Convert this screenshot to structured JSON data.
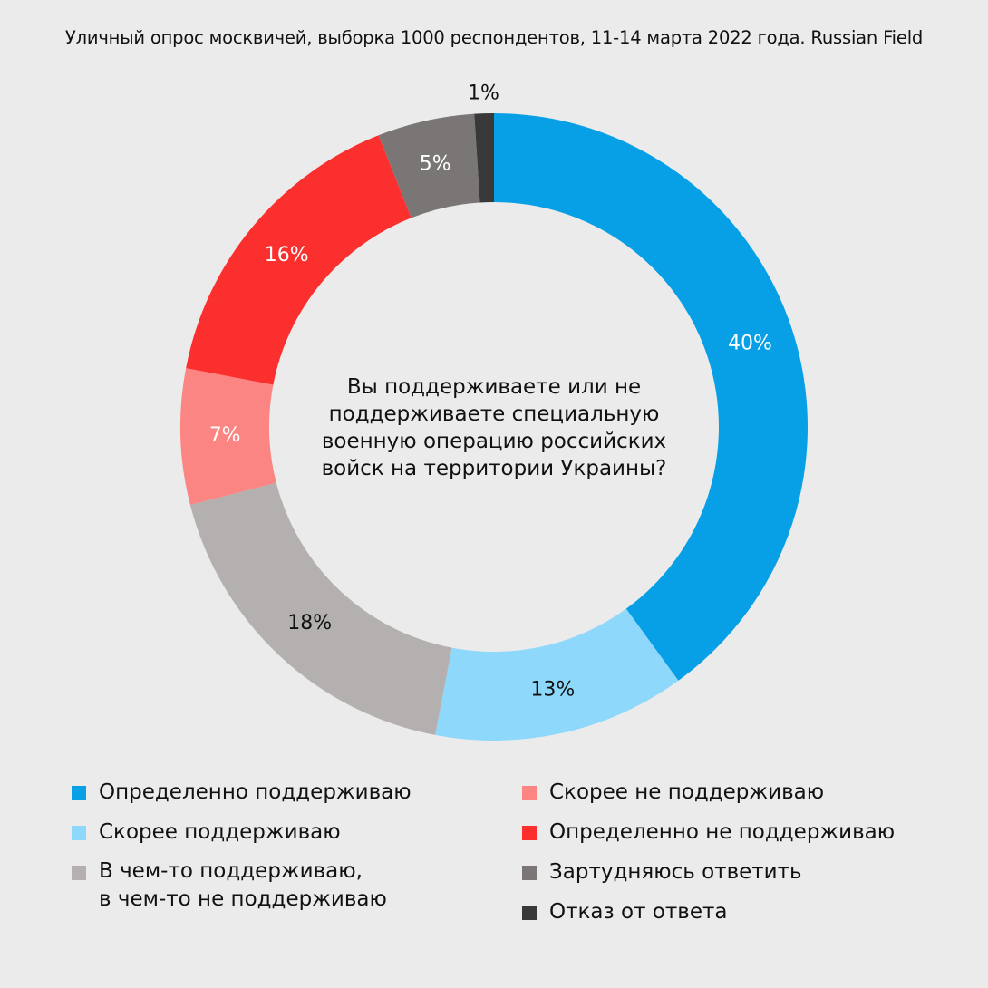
{
  "chart_data": {
    "type": "pie",
    "subtitle": "Уличный опрос москвичей, выборка 1000 респондентов, 11-14 марта 2022 года. Russian Field",
    "center_question": "Вы поддерживаете или не поддерживаете специальную военную операцию российских войск на территории Украины?",
    "slices": [
      {
        "key": "definitely_support",
        "label": "Определенно поддерживаю",
        "value": 40,
        "display": "40%",
        "color": "#079fe6",
        "label_color": "#ffffff"
      },
      {
        "key": "rather_support",
        "label": "Скорее поддерживаю",
        "value": 13,
        "display": "13%",
        "color": "#8ed8fb",
        "label_color": "#111111"
      },
      {
        "key": "partly",
        "label": "В чем-то поддерживаю, в чем-то не поддерживаю",
        "label_line1": "В чем-то поддерживаю,",
        "label_line2": "в чем-то не поддерживаю",
        "value": 18,
        "display": "18%",
        "color": "#b4b0af",
        "label_color": "#111111"
      },
      {
        "key": "rather_not",
        "label": "Скорее не поддерживаю",
        "value": 7,
        "display": "7%",
        "color": "#fa8582",
        "label_color": "#ffffff"
      },
      {
        "key": "definitely_not",
        "label": "Определенно не поддерживаю",
        "value": 16,
        "display": "16%",
        "color": "#fc2f2f",
        "label_color": "#ffffff"
      },
      {
        "key": "hard_to_say",
        "label": "Зартудняюсь ответить",
        "value": 5,
        "display": "5%",
        "color": "#7a7676",
        "label_color": "#ffffff"
      },
      {
        "key": "refused",
        "label": "Отказ от ответа",
        "value": 1,
        "display": "1%",
        "color": "#393939",
        "label_color": "#111111"
      }
    ],
    "legend_placement": "bottom"
  }
}
